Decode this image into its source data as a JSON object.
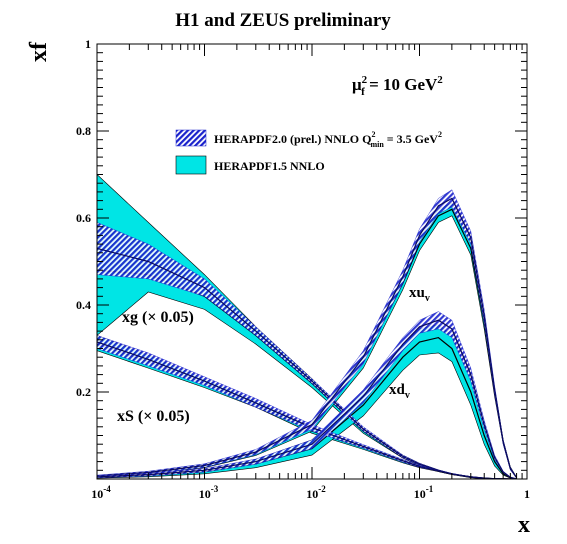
{
  "chart_data": {
    "type": "area",
    "title": "H1 and ZEUS preliminary",
    "xlabel": "x",
    "ylabel": "xf",
    "x_scale": "log",
    "xlim": [
      0.0001,
      1
    ],
    "ylim": [
      0,
      1
    ],
    "grid": false,
    "legend_placement": "top-right",
    "x_ticks": [
      {
        "value": 0.0001,
        "base": "10",
        "exp": "-4"
      },
      {
        "value": 0.001,
        "base": "10",
        "exp": "-3"
      },
      {
        "value": 0.01,
        "base": "10",
        "exp": "-2"
      },
      {
        "value": 0.1,
        "base": "10",
        "exp": "-1"
      },
      {
        "value": 1,
        "base": "1",
        "exp": ""
      }
    ],
    "y_ticks": [
      {
        "value": 0.2,
        "label": "0.2"
      },
      {
        "value": 0.4,
        "label": "0.4"
      },
      {
        "value": 0.6,
        "label": "0.6"
      },
      {
        "value": 0.8,
        "label": "0.8"
      },
      {
        "value": 1,
        "label": "1"
      }
    ],
    "scale_annotation": {
      "mu": "μ",
      "sup": "2",
      "sub": "f",
      "eq": " = 10 GeV",
      "unit_sup": "2"
    },
    "legend": [
      {
        "label": "HERAPDF2.0 (prel.) NNLO Q",
        "sup": "2",
        "sub": "min",
        "tail": " = 3.5 GeV",
        "tail_sup": "2",
        "style": "hatched",
        "color": "#1a22cc"
      },
      {
        "label": "HERAPDF1.5 NNLO",
        "style": "solid",
        "color": "#00e5e5"
      }
    ],
    "curve_labels": {
      "xuv": {
        "main": "xu",
        "sub": "v"
      },
      "xdv": {
        "main": "xd",
        "sub": "v"
      },
      "xg": {
        "main": "xg (× 0.05)"
      },
      "xS": {
        "main": "xS (× 0.05)"
      }
    },
    "x": [
      0.0001,
      0.0003,
      0.001,
      0.003,
      0.01,
      0.03,
      0.07,
      0.1,
      0.15,
      0.2,
      0.3,
      0.4,
      0.5,
      0.6,
      0.7,
      0.8
    ],
    "series": [
      {
        "name": "xg (× 0.05)",
        "pdf": "HERAPDF1.5 NNLO",
        "central": [
          0.48,
          0.47,
          0.42,
          0.33,
          0.22,
          0.11,
          0.05,
          0.033,
          0.019,
          0.011,
          0.004,
          0.0015,
          0.0005,
          0.0002,
          0.0001,
          0.0
        ],
        "upper": [
          0.7,
          0.59,
          0.47,
          0.35,
          0.23,
          0.115,
          0.055,
          0.036,
          0.021,
          0.012,
          0.005,
          0.002,
          0.0007,
          0.0003,
          0.0001,
          0.0
        ],
        "lower": [
          0.33,
          0.43,
          0.39,
          0.31,
          0.21,
          0.105,
          0.048,
          0.031,
          0.017,
          0.01,
          0.003,
          0.001,
          0.0004,
          0.0001,
          0.0,
          0.0
        ]
      },
      {
        "name": "xg (× 0.05)",
        "pdf": "HERAPDF2.0 (prel.) NNLO",
        "central": [
          0.53,
          0.5,
          0.44,
          0.34,
          0.225,
          0.115,
          0.052,
          0.034,
          0.02,
          0.012,
          0.0045,
          0.0016,
          0.0006,
          0.0002,
          0.0001,
          0.0
        ],
        "upper": [
          0.59,
          0.54,
          0.46,
          0.35,
          0.23,
          0.12,
          0.055,
          0.036,
          0.021,
          0.013,
          0.005,
          0.002,
          0.0007,
          0.0003,
          0.0001,
          0.0
        ],
        "lower": [
          0.47,
          0.46,
          0.42,
          0.33,
          0.22,
          0.11,
          0.049,
          0.032,
          0.019,
          0.011,
          0.004,
          0.0012,
          0.0004,
          0.0001,
          0.0,
          0.0
        ]
      },
      {
        "name": "xS (× 0.05)",
        "pdf": "HERAPDF1.5 NNLO",
        "central": [
          0.31,
          0.27,
          0.22,
          0.17,
          0.11,
          0.072,
          0.04,
          0.028,
          0.018,
          0.011,
          0.005,
          0.002,
          0.0008,
          0.0003,
          0.0001,
          0.0
        ],
        "upper": [
          0.33,
          0.285,
          0.23,
          0.18,
          0.12,
          0.076,
          0.043,
          0.03,
          0.019,
          0.012,
          0.0055,
          0.0022,
          0.0009,
          0.0003,
          0.0001,
          0.0
        ],
        "lower": [
          0.295,
          0.255,
          0.21,
          0.165,
          0.105,
          0.068,
          0.037,
          0.026,
          0.017,
          0.01,
          0.0045,
          0.0018,
          0.0007,
          0.0002,
          0.0001,
          0.0
        ]
      },
      {
        "name": "xS (× 0.05)",
        "pdf": "HERAPDF2.0 (prel.) NNLO",
        "central": [
          0.315,
          0.275,
          0.225,
          0.175,
          0.118,
          0.075,
          0.042,
          0.029,
          0.019,
          0.0115,
          0.005,
          0.002,
          0.0008,
          0.0003,
          0.0001,
          0.0
        ],
        "upper": [
          0.33,
          0.29,
          0.235,
          0.185,
          0.125,
          0.079,
          0.045,
          0.031,
          0.02,
          0.012,
          0.0055,
          0.0022,
          0.0009,
          0.0003,
          0.0001,
          0.0
        ],
        "lower": [
          0.3,
          0.26,
          0.215,
          0.165,
          0.11,
          0.071,
          0.039,
          0.027,
          0.018,
          0.011,
          0.0045,
          0.0018,
          0.0007,
          0.0002,
          0.0001,
          0.0
        ]
      },
      {
        "name": "xu_v",
        "pdf": "HERAPDF1.5 NNLO",
        "central": [
          0.006,
          0.014,
          0.03,
          0.06,
          0.12,
          0.27,
          0.45,
          0.54,
          0.605,
          0.62,
          0.53,
          0.36,
          0.2,
          0.085,
          0.025,
          0.003
        ],
        "upper": [
          0.008,
          0.017,
          0.034,
          0.066,
          0.13,
          0.285,
          0.465,
          0.555,
          0.62,
          0.635,
          0.545,
          0.375,
          0.21,
          0.09,
          0.028,
          0.004
        ],
        "lower": [
          0.004,
          0.011,
          0.026,
          0.054,
          0.11,
          0.255,
          0.435,
          0.525,
          0.59,
          0.605,
          0.515,
          0.345,
          0.19,
          0.08,
          0.022,
          0.002
        ]
      },
      {
        "name": "xu_v",
        "pdf": "HERAPDF2.0 (prel.) NNLO",
        "central": [
          0.007,
          0.015,
          0.031,
          0.062,
          0.125,
          0.28,
          0.465,
          0.56,
          0.628,
          0.645,
          0.555,
          0.375,
          0.205,
          0.085,
          0.024,
          0.003
        ],
        "upper": [
          0.009,
          0.018,
          0.035,
          0.068,
          0.135,
          0.295,
          0.48,
          0.575,
          0.645,
          0.665,
          0.57,
          0.39,
          0.215,
          0.09,
          0.027,
          0.004
        ],
        "lower": [
          0.005,
          0.012,
          0.027,
          0.056,
          0.115,
          0.265,
          0.45,
          0.545,
          0.61,
          0.625,
          0.54,
          0.36,
          0.195,
          0.08,
          0.021,
          0.002
        ]
      },
      {
        "name": "xd_v",
        "pdf": "HERAPDF1.5 NNLO",
        "central": [
          0.004,
          0.008,
          0.017,
          0.035,
          0.07,
          0.17,
          0.28,
          0.315,
          0.325,
          0.3,
          0.2,
          0.1,
          0.04,
          0.012,
          0.003,
          0.0
        ],
        "upper": [
          0.006,
          0.011,
          0.022,
          0.045,
          0.09,
          0.2,
          0.31,
          0.345,
          0.355,
          0.33,
          0.23,
          0.12,
          0.05,
          0.016,
          0.004,
          0.0
        ],
        "lower": [
          0.002,
          0.005,
          0.012,
          0.026,
          0.055,
          0.145,
          0.25,
          0.285,
          0.29,
          0.27,
          0.17,
          0.08,
          0.03,
          0.009,
          0.002,
          0.0
        ]
      },
      {
        "name": "xd_v",
        "pdf": "HERAPDF2.0 (prel.) NNLO",
        "central": [
          0.005,
          0.01,
          0.02,
          0.04,
          0.08,
          0.19,
          0.31,
          0.35,
          0.365,
          0.345,
          0.24,
          0.125,
          0.05,
          0.016,
          0.004,
          0.0
        ],
        "upper": [
          0.007,
          0.013,
          0.024,
          0.046,
          0.09,
          0.205,
          0.325,
          0.365,
          0.385,
          0.365,
          0.255,
          0.135,
          0.055,
          0.018,
          0.005,
          0.0
        ],
        "lower": [
          0.003,
          0.007,
          0.016,
          0.034,
          0.07,
          0.175,
          0.295,
          0.335,
          0.345,
          0.325,
          0.225,
          0.115,
          0.045,
          0.014,
          0.003,
          0.0
        ]
      }
    ]
  }
}
